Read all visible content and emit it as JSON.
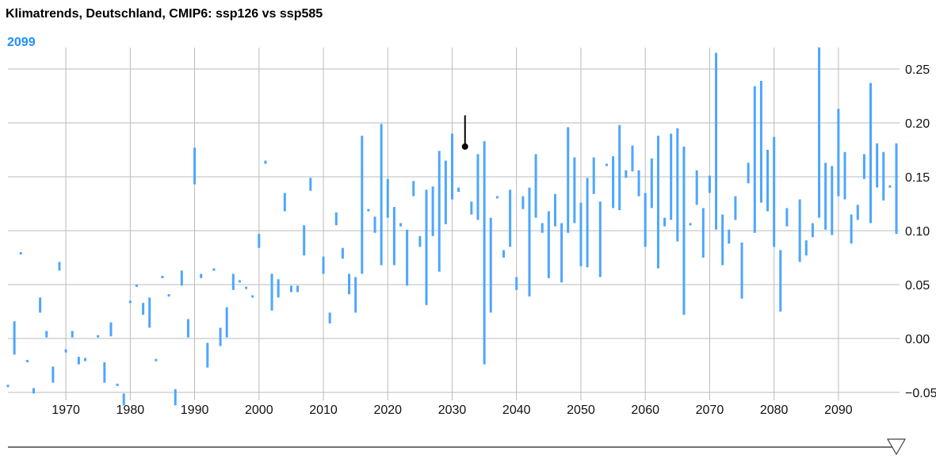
{
  "chart_data": {
    "type": "bar",
    "subtype": "range-bar",
    "title": "Klimatrends, Deutschland, CMIP6: ssp126 vs ssp585",
    "current_year_label": "2099",
    "xlim": [
      1961,
      2099
    ],
    "ylim": [
      -0.055,
      0.27
    ],
    "x_ticks": [
      "1970",
      "1980",
      "1990",
      "2000",
      "2010",
      "2020",
      "2030",
      "2040",
      "2050",
      "2060",
      "2070",
      "2080",
      "2090"
    ],
    "y_ticks": [
      "0.25",
      "0.20",
      "0.15",
      "0.10",
      "0.05",
      "0.00",
      "−0.05"
    ],
    "y_tick_values": [
      0.25,
      0.2,
      0.15,
      0.1,
      0.05,
      0,
      -0.05
    ],
    "grid": true,
    "highlighted": {
      "year": 2032,
      "low": 0.178,
      "high": 0.207
    },
    "bar_color": "#4da6ff",
    "highlight_color": "#000000",
    "start_year": 1961,
    "ranges": [
      [
        -0.044,
        -0.044
      ],
      [
        0.016,
        -0.015
      ],
      [
        0.079,
        0.079
      ],
      [
        -0.021,
        -0.021
      ],
      [
        -0.046,
        -0.051
      ],
      [
        0.038,
        0.024
      ],
      [
        0.007,
        0.001
      ],
      [
        -0.026,
        -0.041
      ],
      [
        0.071,
        0.063
      ],
      [
        -0.01,
        -0.013
      ],
      [
        0.007,
        0.001
      ],
      [
        -0.017,
        -0.024
      ],
      [
        -0.018,
        -0.021
      ],
      null,
      [
        0.002,
        0.002
      ],
      [
        -0.022,
        -0.041
      ],
      [
        0.015,
        0.002
      ],
      [
        -0.043,
        -0.043
      ],
      [
        -0.051,
        -0.062
      ],
      [
        0.035,
        0.033
      ],
      [
        0.049,
        0.049
      ],
      [
        0.033,
        0.022
      ],
      [
        0.038,
        0.01
      ],
      [
        -0.02,
        -0.02
      ],
      [
        0.057,
        0.057
      ],
      [
        0.04,
        0.04
      ],
      [
        -0.047,
        -0.062
      ],
      [
        0.063,
        0.049
      ],
      [
        0.018,
        0.001
      ],
      [
        0.177,
        0.143
      ],
      [
        0.06,
        0.056
      ],
      [
        -0.004,
        -0.027
      ],
      [
        0.065,
        0.063
      ],
      [
        0.01,
        -0.007
      ],
      [
        0.029,
        0.001
      ],
      [
        0.06,
        0.045
      ],
      [
        0.053,
        0.053
      ],
      [
        0.047,
        0.047
      ],
      [
        0.04,
        0.038
      ],
      [
        0.097,
        0.084
      ],
      [
        0.165,
        0.162
      ],
      [
        0.06,
        0.026
      ],
      [
        0.055,
        0.038
      ],
      [
        0.135,
        0.118
      ],
      [
        0.049,
        0.043
      ],
      [
        0.049,
        0.043
      ],
      [
        0.105,
        0.077
      ],
      [
        0.149,
        0.137
      ],
      null,
      [
        0.076,
        0.06
      ],
      [
        0.024,
        0.014
      ],
      [
        0.117,
        0.105
      ],
      [
        0.084,
        0.074
      ],
      [
        0.06,
        0.041
      ],
      [
        0.057,
        0.024
      ],
      [
        0.188,
        0.06
      ],
      [
        0.119,
        0.119
      ],
      [
        0.113,
        0.098
      ],
      [
        0.199,
        0.068
      ],
      [
        0.148,
        0.112
      ],
      [
        0.122,
        0.068
      ],
      [
        0.107,
        0.104
      ],
      [
        0.101,
        0.049
      ],
      [
        0.146,
        0.132
      ],
      [
        0.095,
        0.085
      ],
      [
        0.138,
        0.031
      ],
      [
        0.141,
        0.095
      ],
      [
        0.174,
        0.062
      ],
      [
        0.165,
        0.106
      ],
      [
        0.19,
        0.129
      ],
      [
        0.14,
        0.136
      ],
      [
        0.207,
        0.178
      ],
      [
        0.127,
        0.115
      ],
      [
        0.171,
        0.11
      ],
      [
        0.183,
        -0.024
      ],
      [
        0.112,
        0.024
      ],
      [
        0.131,
        0.131
      ],
      [
        0.082,
        0.075
      ],
      [
        0.138,
        0.085
      ],
      [
        0.057,
        0.045
      ],
      [
        0.132,
        0.12
      ],
      [
        0.14,
        0.039
      ],
      [
        0.171,
        0.112
      ],
      [
        0.107,
        0.098
      ],
      [
        0.118,
        0.056
      ],
      [
        0.134,
        0.104
      ],
      [
        0.107,
        0.052
      ],
      [
        0.196,
        0.098
      ],
      [
        0.168,
        0.107
      ],
      [
        0.126,
        0.067
      ],
      [
        0.149,
        0.066
      ],
      [
        0.168,
        0.134
      ],
      [
        0.127,
        0.057
      ],
      [
        0.161,
        0.161
      ],
      [
        0.169,
        0.121
      ],
      [
        0.198,
        0.119
      ],
      [
        0.156,
        0.149
      ],
      [
        0.179,
        0.155
      ],
      [
        0.156,
        0.132
      ],
      [
        0.135,
        0.085
      ],
      [
        0.167,
        0.121
      ],
      [
        0.188,
        0.065
      ],
      [
        0.112,
        0.104
      ],
      [
        0.19,
        0.11
      ],
      [
        0.195,
        0.09
      ],
      [
        0.178,
        0.022
      ],
      [
        0.106,
        0.106
      ],
      [
        0.156,
        0.124
      ],
      [
        0.121,
        0.075
      ],
      [
        0.151,
        0.135
      ],
      [
        0.265,
        0.101
      ],
      [
        0.115,
        0.068
      ],
      [
        0.101,
        0.088
      ],
      [
        0.132,
        0.11
      ],
      [
        0.089,
        0.037
      ],
      [
        0.163,
        0.144
      ],
      [
        0.234,
        0.098
      ],
      [
        0.239,
        0.126
      ],
      [
        0.175,
        0.118
      ],
      [
        0.187,
        0.085
      ],
      [
        0.082,
        0.025
      ],
      [
        0.121,
        0.104
      ],
      null,
      [
        0.129,
        0.071
      ],
      [
        0.091,
        0.077
      ],
      [
        0.107,
        0.094
      ],
      [
        0.27,
        0.112
      ],
      [
        0.163,
        0.101
      ],
      [
        0.16,
        0.096
      ],
      [
        0.213,
        0.132
      ],
      [
        0.173,
        0.129
      ],
      [
        0.115,
        0.088
      ],
      [
        0.124,
        0.11
      ],
      [
        0.171,
        0.148
      ],
      [
        0.237,
        0.107
      ],
      [
        0.181,
        0.14
      ],
      [
        0.173,
        0.128
      ],
      [
        0.141,
        0.141
      ],
      [
        0.181,
        0.097
      ]
    ]
  }
}
